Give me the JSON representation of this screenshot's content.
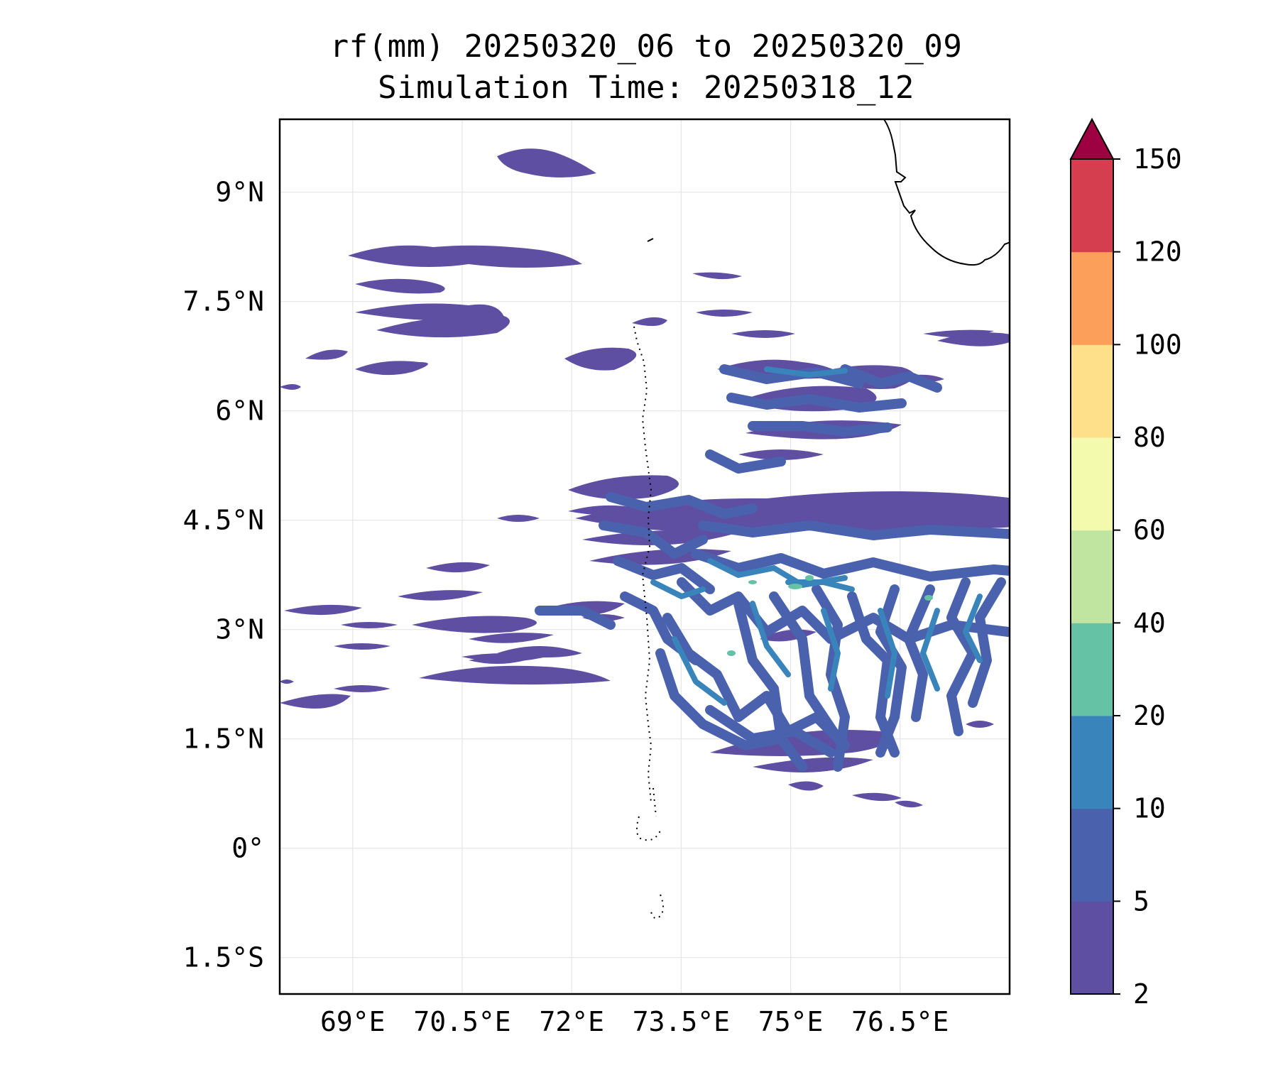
{
  "title": {
    "line1": "rf(mm) 20250320_06 to 20250320_09",
    "line2": "Simulation Time: 20250318_12"
  },
  "map": {
    "lon_range": [
      68.0,
      78.0
    ],
    "lat_range": [
      -2.0,
      10.0
    ],
    "lon_ticks": [
      {
        "value": 69.0,
        "label": "69°E"
      },
      {
        "value": 70.5,
        "label": "70.5°E"
      },
      {
        "value": 72.0,
        "label": "72°E"
      },
      {
        "value": 73.5,
        "label": "73.5°E"
      },
      {
        "value": 75.0,
        "label": "75°E"
      },
      {
        "value": 76.5,
        "label": "76.5°E"
      }
    ],
    "lat_ticks": [
      {
        "value": 9.0,
        "label": "9°N"
      },
      {
        "value": 7.5,
        "label": "7.5°N"
      },
      {
        "value": 6.0,
        "label": "6°N"
      },
      {
        "value": 4.5,
        "label": "4.5°N"
      },
      {
        "value": 3.0,
        "label": "3°N"
      },
      {
        "value": 1.5,
        "label": "1.5°N"
      },
      {
        "value": 0.0,
        "label": "0°"
      },
      {
        "value": -1.5,
        "label": "1.5°S"
      }
    ],
    "gridlines": true,
    "rain_colors": {
      "low": "#5e4fa2",
      "mid": "#4a62ae",
      "high": "#3884bb",
      "peak": "#66c2a5"
    }
  },
  "colorbar": {
    "levels": [
      "2",
      "5",
      "10",
      "20",
      "40",
      "60",
      "80",
      "100",
      "120",
      "150"
    ],
    "colors": [
      "#5e4fa2",
      "#4a62ae",
      "#3884bb",
      "#66c2a5",
      "#bfe5a0",
      "#f3faad",
      "#fee08b",
      "#fb9f5a",
      "#d53e4f"
    ],
    "extend_color": "#9e0142",
    "extend": "max"
  }
}
